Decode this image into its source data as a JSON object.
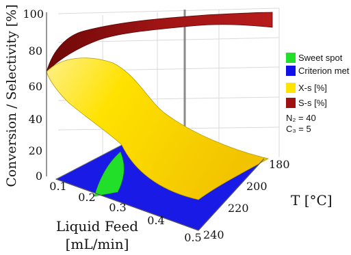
{
  "chart_data": {
    "type": "surface3d",
    "zlabel": "Conversion / Selectivity [%]",
    "xlabel_line1": "Liquid Feed",
    "xlabel_line2": "[mL/min]",
    "ylabel": "T [°C]",
    "z_ticks": [
      "0",
      "20",
      "40",
      "60",
      "80",
      "100"
    ],
    "x_ticks": [
      "0.1",
      "0.2",
      "0.3",
      "0.4",
      "0.5"
    ],
    "y_ticks": [
      "180",
      "200",
      "220",
      "240"
    ],
    "zlim": [
      0,
      100
    ],
    "xlim": [
      0.1,
      0.5
    ],
    "ylim": [
      180,
      240
    ],
    "series": [
      {
        "name": "X-s [%]",
        "color": "#ffe400",
        "points": [
          {
            "feed": 0.1,
            "T": 240,
            "z": 62
          },
          {
            "feed": 0.15,
            "T": 240,
            "z": 75
          },
          {
            "feed": 0.3,
            "T": 240,
            "z": 72
          },
          {
            "feed": 0.5,
            "T": 240,
            "z": 46
          },
          {
            "feed": 0.5,
            "T": 210,
            "z": 20
          },
          {
            "feed": 0.5,
            "T": 180,
            "z": 5
          },
          {
            "feed": 0.1,
            "T": 180,
            "z": 18
          }
        ]
      },
      {
        "name": "S-s [%]",
        "color": "#a01010",
        "points": [
          {
            "feed": 0.1,
            "T": 240,
            "z": 62
          },
          {
            "feed": 0.2,
            "T": 240,
            "z": 92
          },
          {
            "feed": 0.4,
            "T": 240,
            "z": 100
          },
          {
            "feed": 0.5,
            "T": 200,
            "z": 100
          },
          {
            "feed": 0.5,
            "T": 180,
            "z": 99
          }
        ]
      }
    ],
    "regions": [
      {
        "name": "Sweet spot",
        "color": "#22e02a"
      },
      {
        "name": "Criterion met 1",
        "color": "#1010e8"
      }
    ],
    "annotations": [
      "N₂ = 40",
      "C₃ = 5"
    ]
  }
}
